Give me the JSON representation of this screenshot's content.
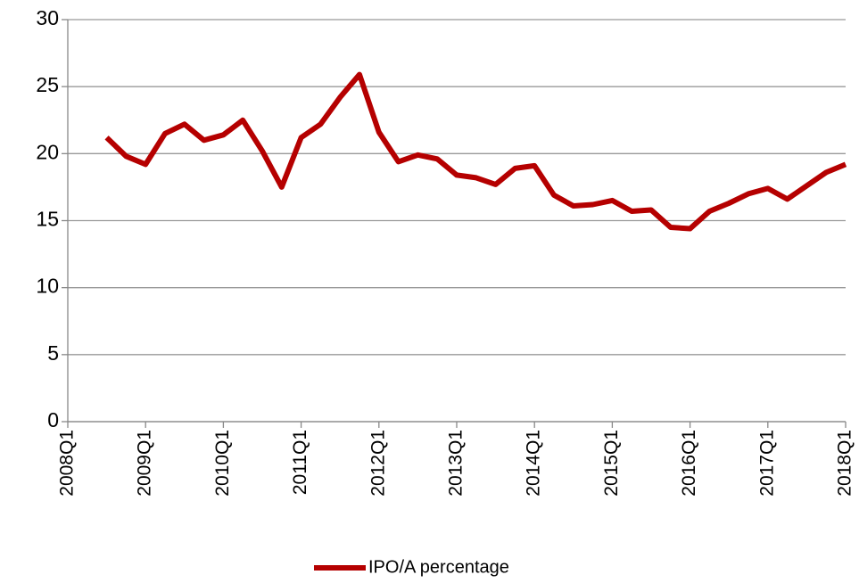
{
  "chart_data": {
    "type": "line",
    "categories": [
      "2008Q1",
      null,
      null,
      null,
      "2009Q1",
      null,
      null,
      null,
      "2010Q1",
      null,
      null,
      null,
      "2011Q1",
      null,
      null,
      null,
      "2012Q1",
      null,
      null,
      null,
      "2013Q1",
      null,
      null,
      null,
      "2014Q1",
      null,
      null,
      null,
      "2015Q1",
      null,
      null,
      null,
      "2016Q1",
      null,
      null,
      null,
      "2017Q1",
      null,
      null,
      null,
      "2018Q1"
    ],
    "series": [
      {
        "name": "IPO/A percentage",
        "color": "#b50000",
        "values": [
          null,
          null,
          21.2,
          19.8,
          19.2,
          21.5,
          22.2,
          21.0,
          21.4,
          22.5,
          20.2,
          17.5,
          21.2,
          22.2,
          24.2,
          25.9,
          21.6,
          19.4,
          19.9,
          19.6,
          18.4,
          18.2,
          17.7,
          18.9,
          19.1,
          16.9,
          16.1,
          16.2,
          16.5,
          15.7,
          15.8,
          14.5,
          14.4,
          15.7,
          16.3,
          17.0,
          17.4,
          16.6,
          17.6,
          18.6,
          19.2
        ]
      }
    ],
    "ylim": [
      0,
      30
    ],
    "yticks": [
      0,
      5,
      10,
      15,
      20,
      25,
      30
    ],
    "grid": true,
    "legend": "bottom"
  }
}
